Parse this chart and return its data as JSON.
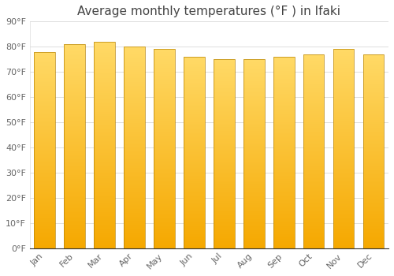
{
  "title": "Average monthly temperatures (°F ) in Ifaki",
  "months": [
    "Jan",
    "Feb",
    "Mar",
    "Apr",
    "May",
    "Jun",
    "Jul",
    "Aug",
    "Sep",
    "Oct",
    "Nov",
    "Dec"
  ],
  "values": [
    78,
    81,
    82,
    80,
    79,
    76,
    75,
    75,
    76,
    77,
    79,
    77
  ],
  "bar_color_bottom": "#F5A800",
  "bar_color_top": "#FFD966",
  "bar_edge_color": "#B8860B",
  "background_color": "#FFFFFF",
  "plot_bg_color": "#FFFFFF",
  "grid_color": "#DDDDDD",
  "ylim": [
    0,
    90
  ],
  "yticks": [
    0,
    10,
    20,
    30,
    40,
    50,
    60,
    70,
    80,
    90
  ],
  "ytick_labels": [
    "0°F",
    "10°F",
    "20°F",
    "30°F",
    "40°F",
    "50°F",
    "60°F",
    "70°F",
    "80°F",
    "90°F"
  ],
  "title_fontsize": 11,
  "tick_fontsize": 8,
  "font_color": "#666666",
  "title_color": "#444444",
  "bar_width": 0.7,
  "figsize": [
    5.0,
    3.5
  ],
  "dpi": 100
}
